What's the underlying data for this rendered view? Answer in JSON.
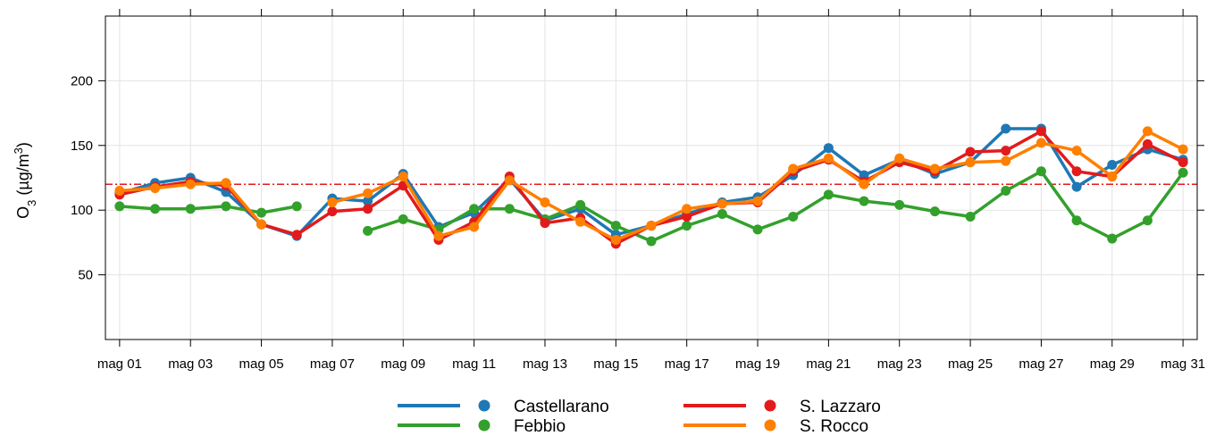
{
  "chart_data": {
    "type": "line",
    "ylabel": {
      "main": "O",
      "sub": "3",
      "unit_open": " (µg/m",
      "sup": "3",
      "unit_close": ")"
    },
    "ylim": [
      0,
      250
    ],
    "yticks": [
      50,
      100,
      150,
      200
    ],
    "xlim": [
      0.6,
      31.4
    ],
    "x": [
      1,
      2,
      3,
      4,
      5,
      6,
      7,
      8,
      9,
      10,
      11,
      12,
      13,
      14,
      15,
      16,
      17,
      18,
      19,
      20,
      21,
      22,
      23,
      24,
      25,
      26,
      27,
      28,
      29,
      30,
      31
    ],
    "xtick_positions": [
      1,
      3,
      5,
      7,
      9,
      11,
      13,
      15,
      17,
      19,
      21,
      23,
      25,
      27,
      29,
      31
    ],
    "xtick_labels": [
      "mag 01",
      "mag 03",
      "mag 05",
      "mag 07",
      "mag 09",
      "mag 11",
      "mag 13",
      "mag 15",
      "mag 17",
      "mag 19",
      "mag 21",
      "mag 23",
      "mag 25",
      "mag 27",
      "mag 29",
      "mag 31"
    ],
    "grid": true,
    "threshold": {
      "value": 120,
      "color": "#e31a1c"
    },
    "legend_position": "bottom",
    "series": [
      {
        "name": "Castellarano",
        "color": "#1f78b4",
        "values": [
          113,
          121,
          125,
          114,
          89,
          80,
          109,
          107,
          128,
          87,
          98,
          124,
          92,
          101,
          81,
          88,
          97,
          106,
          110,
          127,
          148,
          127,
          139,
          128,
          137,
          163,
          163,
          118,
          135,
          147,
          139
        ]
      },
      {
        "name": "Febbio",
        "color": "#33a02c",
        "values": [
          103,
          101,
          101,
          103,
          98,
          103,
          null,
          84,
          93,
          85,
          101,
          101,
          93,
          104,
          88,
          76,
          88,
          97,
          85,
          95,
          112,
          107,
          104,
          99,
          95,
          115,
          130,
          92,
          78,
          92,
          129
        ]
      },
      {
        "name": "S. Lazzaro",
        "color": "#e31a1c",
        "values": [
          112,
          118,
          122,
          119,
          89,
          81,
          99,
          101,
          119,
          77,
          91,
          126,
          90,
          94,
          74,
          88,
          95,
          105,
          106,
          130,
          139,
          122,
          137,
          130,
          145,
          146,
          161,
          130,
          126,
          151,
          137
        ]
      },
      {
        "name": "S. Rocco",
        "color": "#ff7f00",
        "values": [
          115,
          117,
          120,
          121,
          89,
          null,
          106,
          113,
          126,
          80,
          87,
          123,
          106,
          91,
          77,
          88,
          101,
          105,
          107,
          132,
          140,
          120,
          140,
          132,
          137,
          138,
          152,
          146,
          126,
          161,
          147
        ]
      }
    ]
  }
}
